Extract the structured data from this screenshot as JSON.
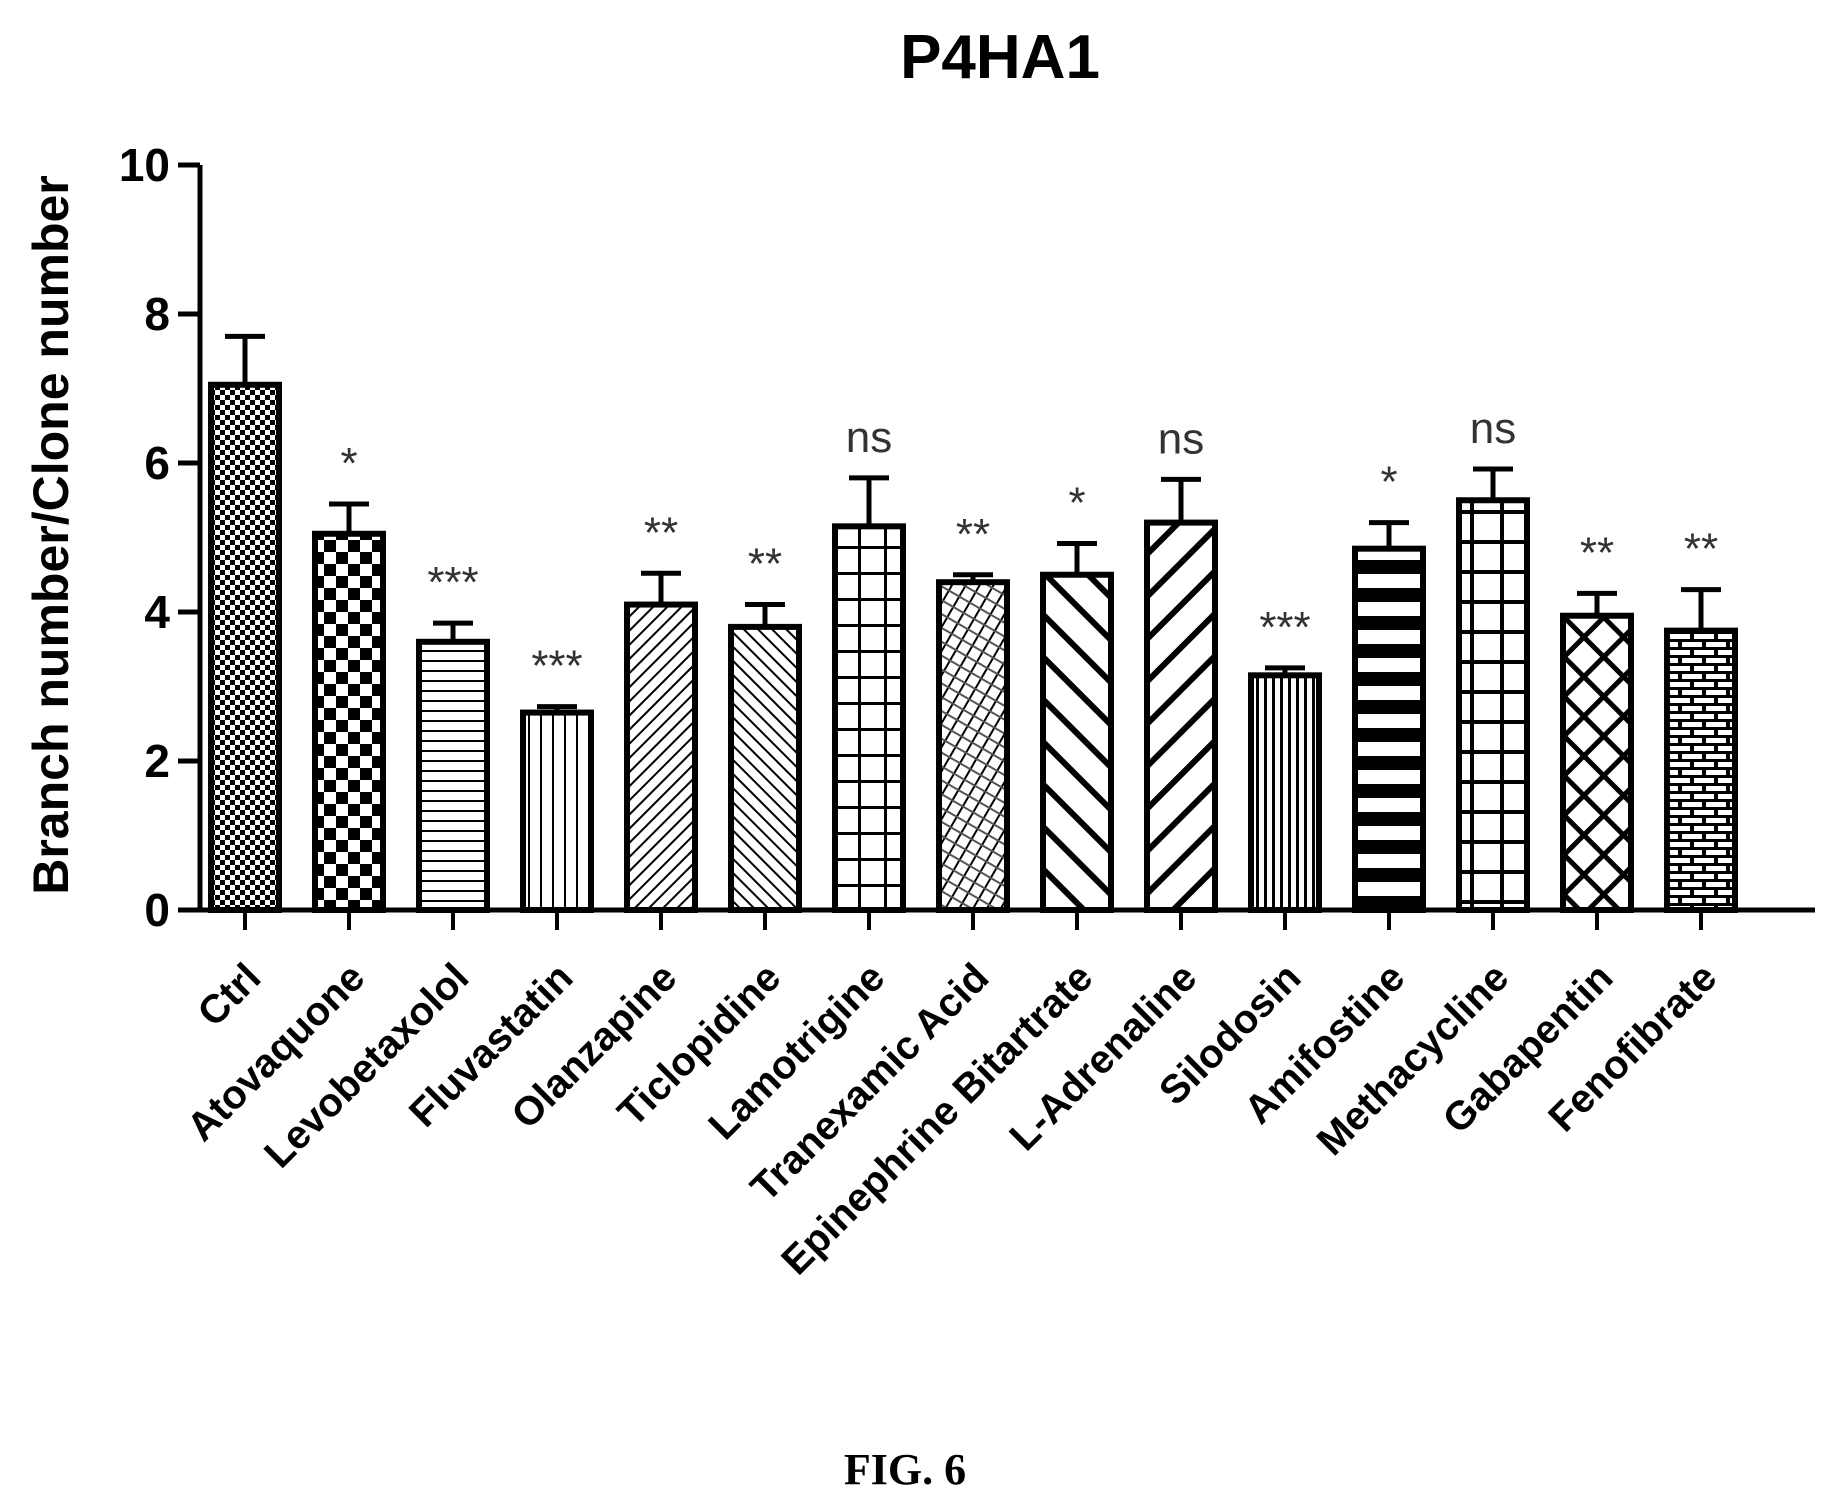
{
  "chart_data": {
    "type": "bar",
    "title": "P4HA1",
    "xlabel": "",
    "ylabel": "Branch number/Clone number",
    "ylim": [
      0,
      10
    ],
    "yticks": [
      0,
      2,
      4,
      6,
      8,
      10
    ],
    "grid": false,
    "categories": [
      "Ctrl",
      "Atovaquone",
      "Levobetaxolol",
      "Fluvastatin",
      "Olanzapine",
      "Ticlopidine",
      "Lamotrigine",
      "Tranexamic Acid",
      "Epinephrine Bitartrate",
      "L-Adrenaline",
      "Silodosin",
      "Amifostine",
      "Methacycline",
      "Gabapentin",
      "Fenofibrate"
    ],
    "values": [
      7.05,
      5.05,
      3.6,
      2.65,
      4.1,
      3.8,
      5.15,
      4.4,
      4.5,
      5.2,
      3.15,
      4.85,
      5.5,
      3.95,
      3.75
    ],
    "errors": [
      0.65,
      0.4,
      0.25,
      0.08,
      0.42,
      0.3,
      0.65,
      0.1,
      0.42,
      0.58,
      0.1,
      0.35,
      0.42,
      0.3,
      0.55
    ],
    "significance": [
      "",
      "*",
      "***",
      "***",
      "**",
      "**",
      "ns",
      "**",
      "*",
      "ns",
      "***",
      "*",
      "ns",
      "**",
      "**"
    ],
    "patterns": [
      "checker-fine",
      "checker",
      "horizontal-lines",
      "vertical-lines",
      "diagonal-right",
      "diagonal-left",
      "grid",
      "crosshatch-fine",
      "diagonal-left-wide",
      "diagonal-right-wide",
      "vertical-lines-dense",
      "horizontal-thick",
      "grid-wide",
      "crosshatch",
      "brick"
    ]
  },
  "caption": "FIG. 6"
}
